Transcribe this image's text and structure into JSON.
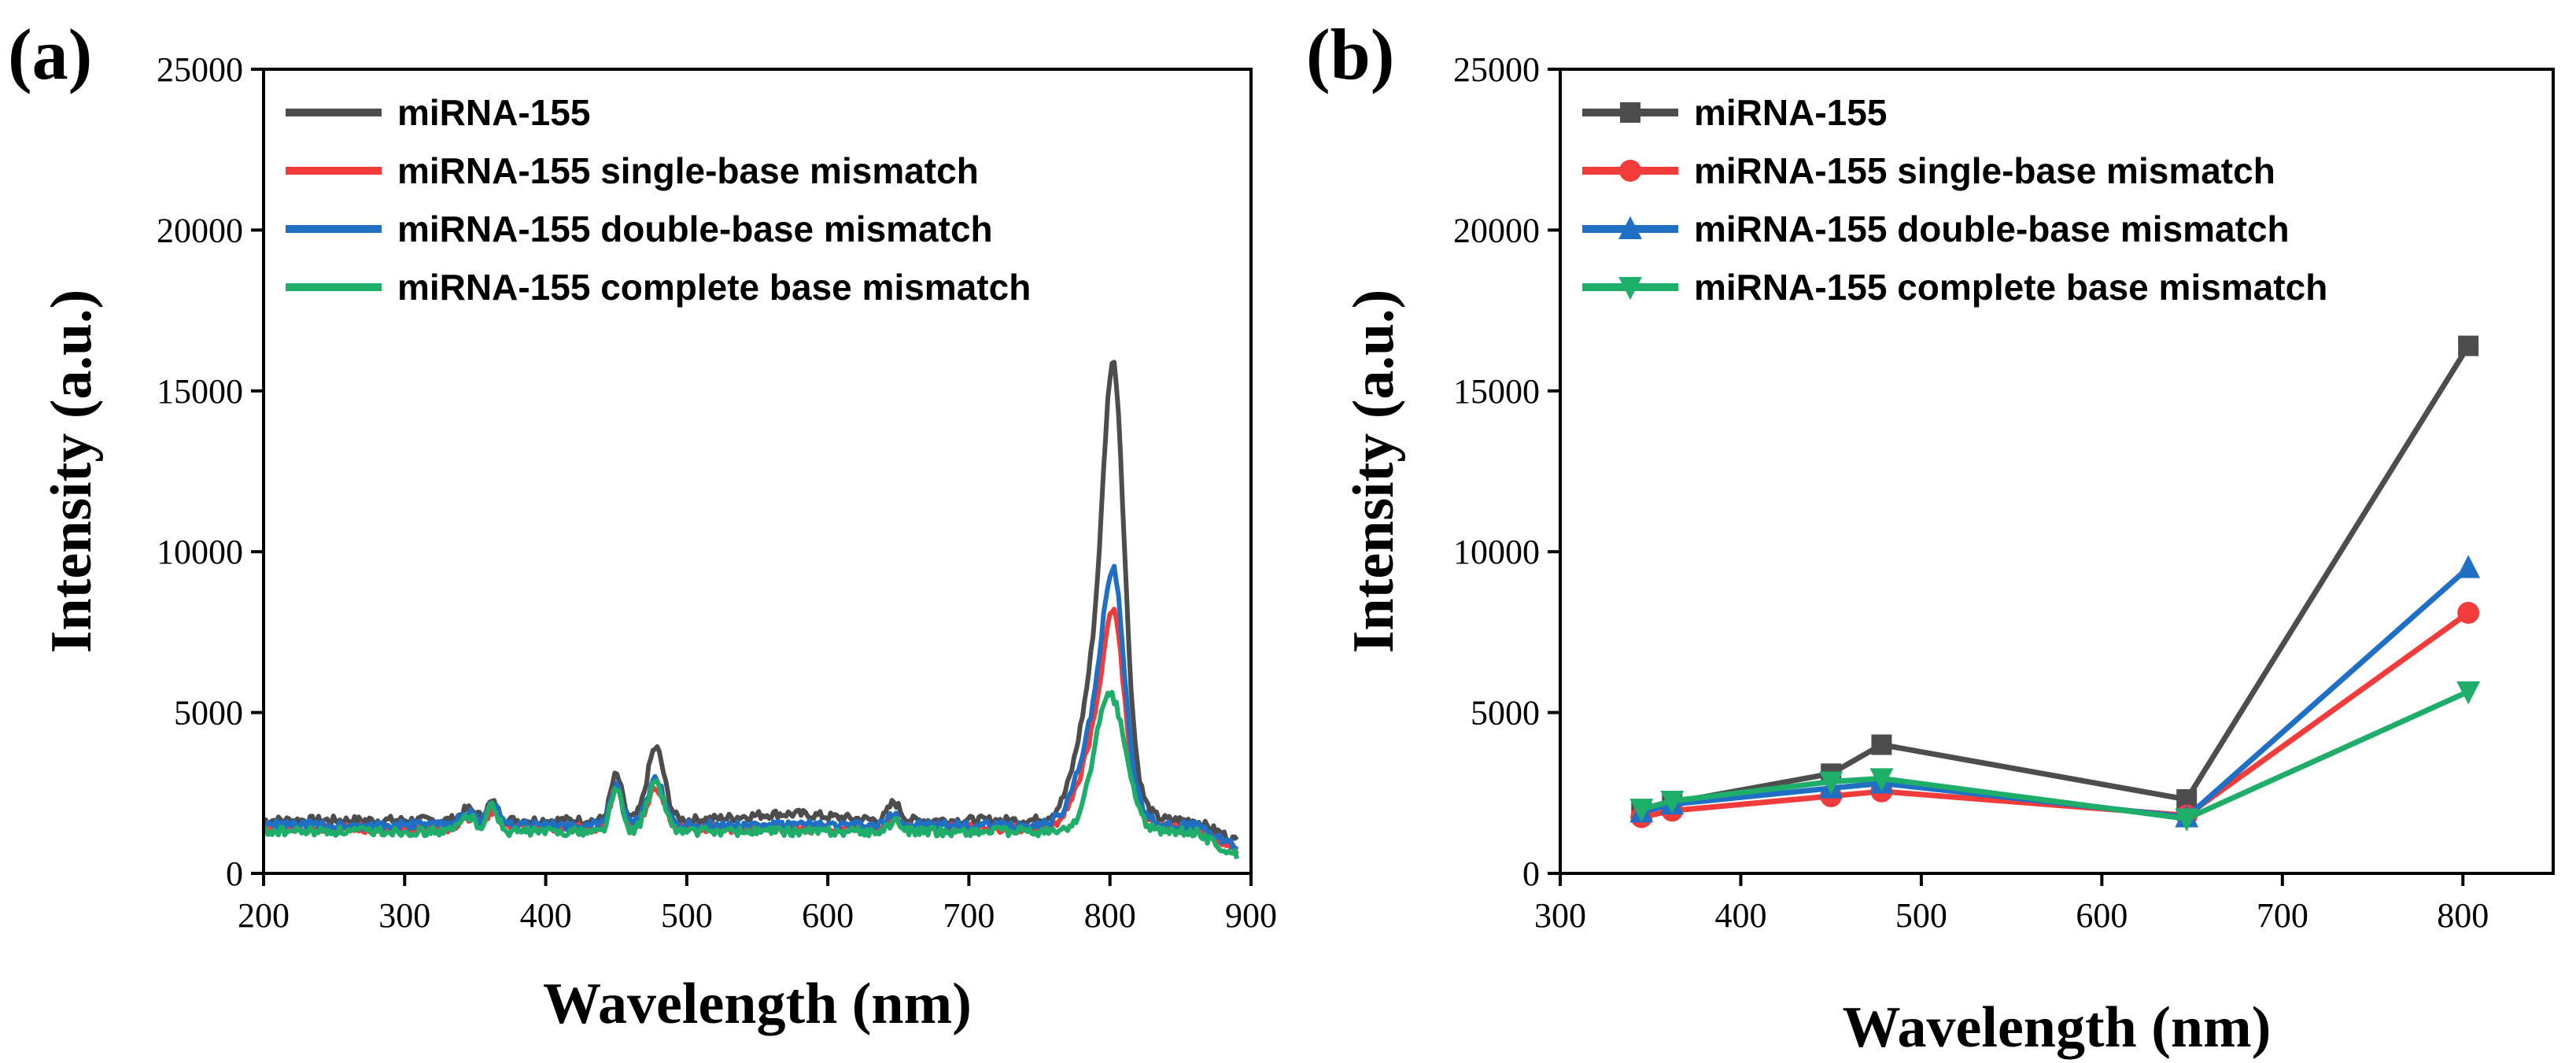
{
  "figure": {
    "panel_a_label": "(a)",
    "panel_b_label": "(b)"
  },
  "colors": {
    "miRNA-155": "#4d4d4d",
    "single": "#f23b3b",
    "double": "#1f6fc4",
    "complete": "#1fad6a"
  },
  "chart_data": [
    {
      "id": "a",
      "type": "line",
      "title": "",
      "xlabel": "Wavelength (nm)",
      "ylabel": "Intensity (a.u.)",
      "xlim": [
        200,
        900
      ],
      "ylim": [
        0,
        25000
      ],
      "xticks": [
        200,
        300,
        400,
        500,
        600,
        700,
        800,
        900
      ],
      "yticks": [
        0,
        5000,
        10000,
        15000,
        20000,
        25000
      ],
      "legend_position": "top-left",
      "series": [
        {
          "name": "miRNA-155",
          "color_key": "miRNA-155",
          "baseline": 1650,
          "end_value": 1000,
          "peaks": [
            [
              345,
              350,
              5
            ],
            [
              362,
              550,
              4
            ],
            [
              450,
              1400,
              4
            ],
            [
              478,
              2250,
              6
            ],
            [
              570,
              200,
              30
            ],
            [
              647,
              550,
              4
            ],
            [
              795,
              5500,
              14
            ],
            [
              803,
              9500,
              7
            ]
          ]
        },
        {
          "name": "miRNA-155 single-base mismatch",
          "color_key": "single",
          "baseline": 1400,
          "end_value": 700,
          "peaks": [
            [
              345,
              350,
              5
            ],
            [
              362,
              550,
              4
            ],
            [
              450,
              1300,
              4
            ],
            [
              478,
              1300,
              6
            ],
            [
              647,
              300,
              4
            ],
            [
              795,
              3200,
              14
            ],
            [
              803,
              4000,
              7
            ]
          ]
        },
        {
          "name": "miRNA-155 double-base mismatch",
          "color_key": "double",
          "baseline": 1500,
          "end_value": 800,
          "peaks": [
            [
              345,
              400,
              5
            ],
            [
              362,
              650,
              4
            ],
            [
              450,
              1300,
              4
            ],
            [
              478,
              1400,
              6
            ],
            [
              647,
              350,
              4
            ],
            [
              795,
              3800,
              14
            ],
            [
              803,
              4700,
              7
            ]
          ]
        },
        {
          "name": "miRNA-155 complete base mismatch",
          "color_key": "complete",
          "baseline": 1300,
          "end_value": 550,
          "peaks": [
            [
              345,
              500,
              5
            ],
            [
              362,
              800,
              4
            ],
            [
              450,
              1300,
              4
            ],
            [
              478,
              1500,
              6
            ],
            [
              647,
              300,
              4
            ],
            [
              800,
              4250,
              11
            ]
          ]
        }
      ]
    },
    {
      "id": "b",
      "type": "line",
      "title": "",
      "xlabel": "Wavelength (nm)",
      "ylabel": "Intensity (a.u.)",
      "xlim": [
        300,
        850
      ],
      "ylim": [
        0,
        25000
      ],
      "xticks": [
        300,
        400,
        500,
        600,
        700,
        800
      ],
      "yticks": [
        0,
        5000,
        10000,
        15000,
        20000,
        25000
      ],
      "legend_position": "top-left",
      "x": [
        345,
        362,
        450,
        478,
        647,
        803
      ],
      "series": [
        {
          "name": "miRNA-155",
          "color_key": "miRNA-155",
          "marker": "square",
          "values": [
            2000,
            2200,
            3100,
            4000,
            2300,
            16400
          ]
        },
        {
          "name": "miRNA-155 single-base mismatch",
          "color_key": "single",
          "marker": "circle",
          "values": [
            1750,
            1950,
            2400,
            2550,
            1800,
            8100
          ]
        },
        {
          "name": "miRNA-155 double-base mismatch",
          "color_key": "double",
          "marker": "triangle-up",
          "values": [
            1900,
            2150,
            2650,
            2800,
            1750,
            9500
          ]
        },
        {
          "name": "miRNA-155 complete base mismatch",
          "color_key": "complete",
          "marker": "triangle-down",
          "values": [
            2000,
            2250,
            2850,
            2950,
            1700,
            5650
          ]
        }
      ]
    }
  ]
}
